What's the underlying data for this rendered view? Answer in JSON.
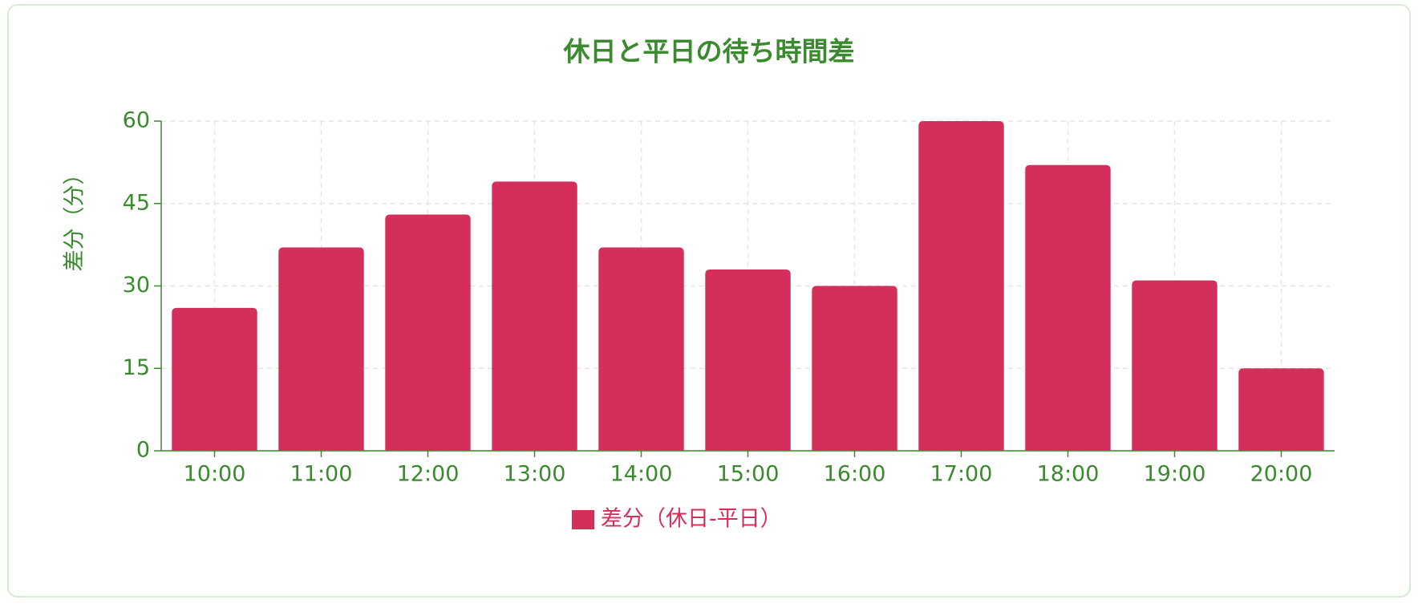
{
  "chart_data": {
    "type": "bar",
    "title": "休日と平日の待ち時間差",
    "y_label": "差分（分）",
    "categories": [
      "10:00",
      "11:00",
      "12:00",
      "13:00",
      "14:00",
      "15:00",
      "16:00",
      "17:00",
      "18:00",
      "19:00",
      "20:00"
    ],
    "series": [
      {
        "name": "差分（休日-平日）",
        "color": "#d42e5b",
        "values": [
          26,
          37,
          43,
          49,
          37,
          33,
          30,
          60,
          52,
          31,
          15
        ]
      }
    ],
    "ylim": [
      0,
      60
    ],
    "yticks": [
      0,
      15,
      30,
      45,
      60
    ],
    "grid": true,
    "legend": "bottom"
  }
}
